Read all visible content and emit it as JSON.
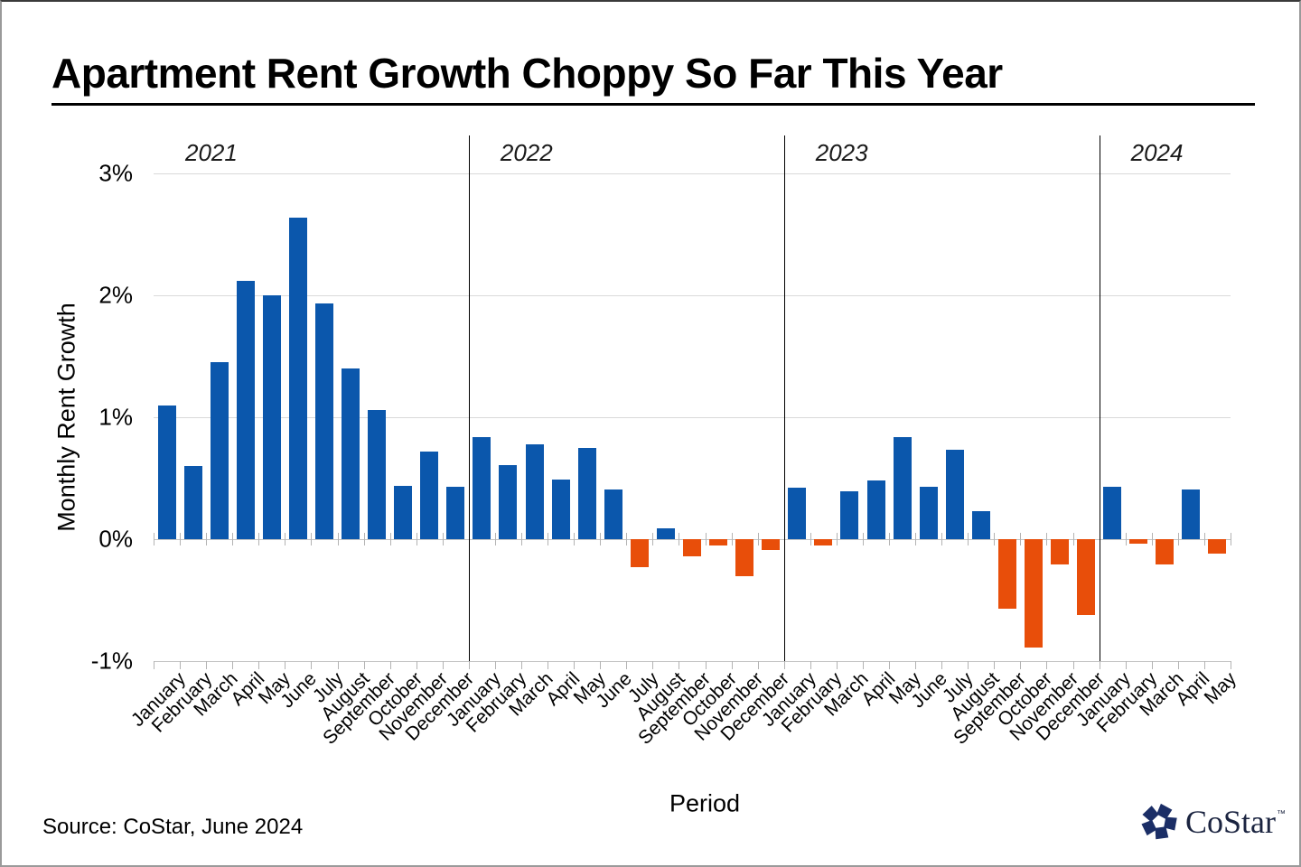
{
  "slide": {
    "source": "Source: CoStar, June 2024",
    "logo": {
      "brand": "CoStar",
      "tm": "™"
    }
  },
  "chart_data": {
    "type": "bar",
    "title": "Apartment Rent Growth Choppy So Far This Year",
    "xlabel": "Period",
    "ylabel": "Monthly Rent Growth",
    "ylim": [
      -1,
      3
    ],
    "grid": "horizontal",
    "legend": "none",
    "colors": {
      "positive": "#0B57AC",
      "negative": "#E84E0A"
    },
    "yticks": [
      {
        "value": 3,
        "label": "3%"
      },
      {
        "value": 2,
        "label": "2%"
      },
      {
        "value": 1,
        "label": "1%"
      },
      {
        "value": 0,
        "label": "0%"
      },
      {
        "value": -1,
        "label": "-1%"
      }
    ],
    "groups": [
      {
        "year": "2021",
        "categories": [
          "January",
          "February",
          "March",
          "April",
          "May",
          "June",
          "July",
          "August",
          "September",
          "October",
          "November",
          "December"
        ],
        "values": [
          1.1,
          0.6,
          1.45,
          2.12,
          2.0,
          2.64,
          1.93,
          1.4,
          1.06,
          0.44,
          0.72,
          0.43
        ]
      },
      {
        "year": "2022",
        "categories": [
          "January",
          "February",
          "March",
          "April",
          "May",
          "June",
          "July",
          "August",
          "September",
          "October",
          "November",
          "December"
        ],
        "values": [
          0.84,
          0.61,
          0.78,
          0.49,
          0.75,
          0.41,
          -0.23,
          0.09,
          -0.14,
          -0.05,
          -0.3,
          -0.09
        ]
      },
      {
        "year": "2023",
        "categories": [
          "January",
          "February",
          "March",
          "April",
          "May",
          "June",
          "July",
          "August",
          "September",
          "October",
          "November",
          "December"
        ],
        "values": [
          0.42,
          -0.05,
          0.39,
          0.48,
          0.84,
          0.43,
          0.73,
          0.23,
          -0.57,
          -0.89,
          -0.21,
          -0.62
        ]
      },
      {
        "year": "2024",
        "categories": [
          "January",
          "February",
          "March",
          "April",
          "May"
        ],
        "values": [
          0.43,
          -0.04,
          -0.21,
          0.41,
          -0.12
        ]
      }
    ]
  }
}
